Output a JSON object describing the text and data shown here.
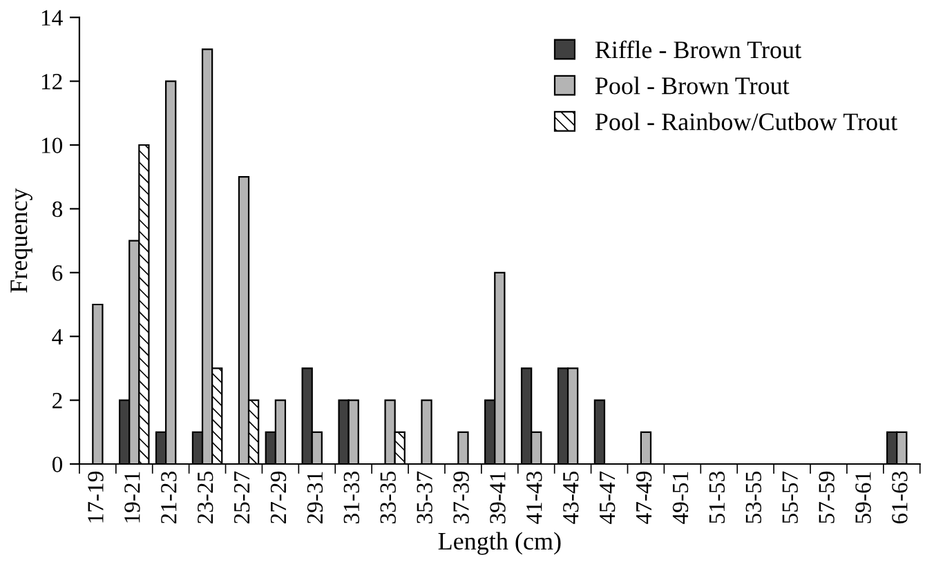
{
  "chart_data": {
    "type": "bar",
    "xlabel": "Length (cm)",
    "ylabel": "Frequency",
    "categories": [
      "17-19",
      "19-21",
      "21-23",
      "23-25",
      "25-27",
      "27-29",
      "29-31",
      "31-33",
      "33-35",
      "35-37",
      "37-39",
      "39-41",
      "41-43",
      "43-45",
      "45-47",
      "47-49",
      "49-51",
      "51-53",
      "53-55",
      "55-57",
      "57-59",
      "59-61",
      "61-63"
    ],
    "series": [
      {
        "name": "Riffle - Brown Trout",
        "color": "#404040",
        "values": [
          0,
          2,
          1,
          1,
          0,
          1,
          3,
          2,
          0,
          0,
          0,
          2,
          3,
          3,
          2,
          0,
          0,
          0,
          0,
          0,
          0,
          0,
          1
        ]
      },
      {
        "name": "Pool - Brown Trout",
        "color": "#b4b4b4",
        "values": [
          5,
          7,
          12,
          13,
          9,
          2,
          1,
          2,
          2,
          2,
          1,
          6,
          1,
          3,
          0,
          1,
          0,
          0,
          0,
          0,
          0,
          0,
          1
        ]
      },
      {
        "name": "Pool - Rainbow/Cutbow Trout",
        "color": "#ffffff",
        "values": [
          0,
          10,
          0,
          3,
          2,
          0,
          0,
          0,
          1,
          0,
          0,
          0,
          0,
          0,
          0,
          0,
          0,
          0,
          0,
          0,
          0,
          0,
          0
        ]
      }
    ],
    "ylim": [
      0,
      14
    ],
    "yticks": [
      0,
      2,
      4,
      6,
      8,
      10,
      12,
      14
    ],
    "grid": false,
    "legend": "top right"
  }
}
